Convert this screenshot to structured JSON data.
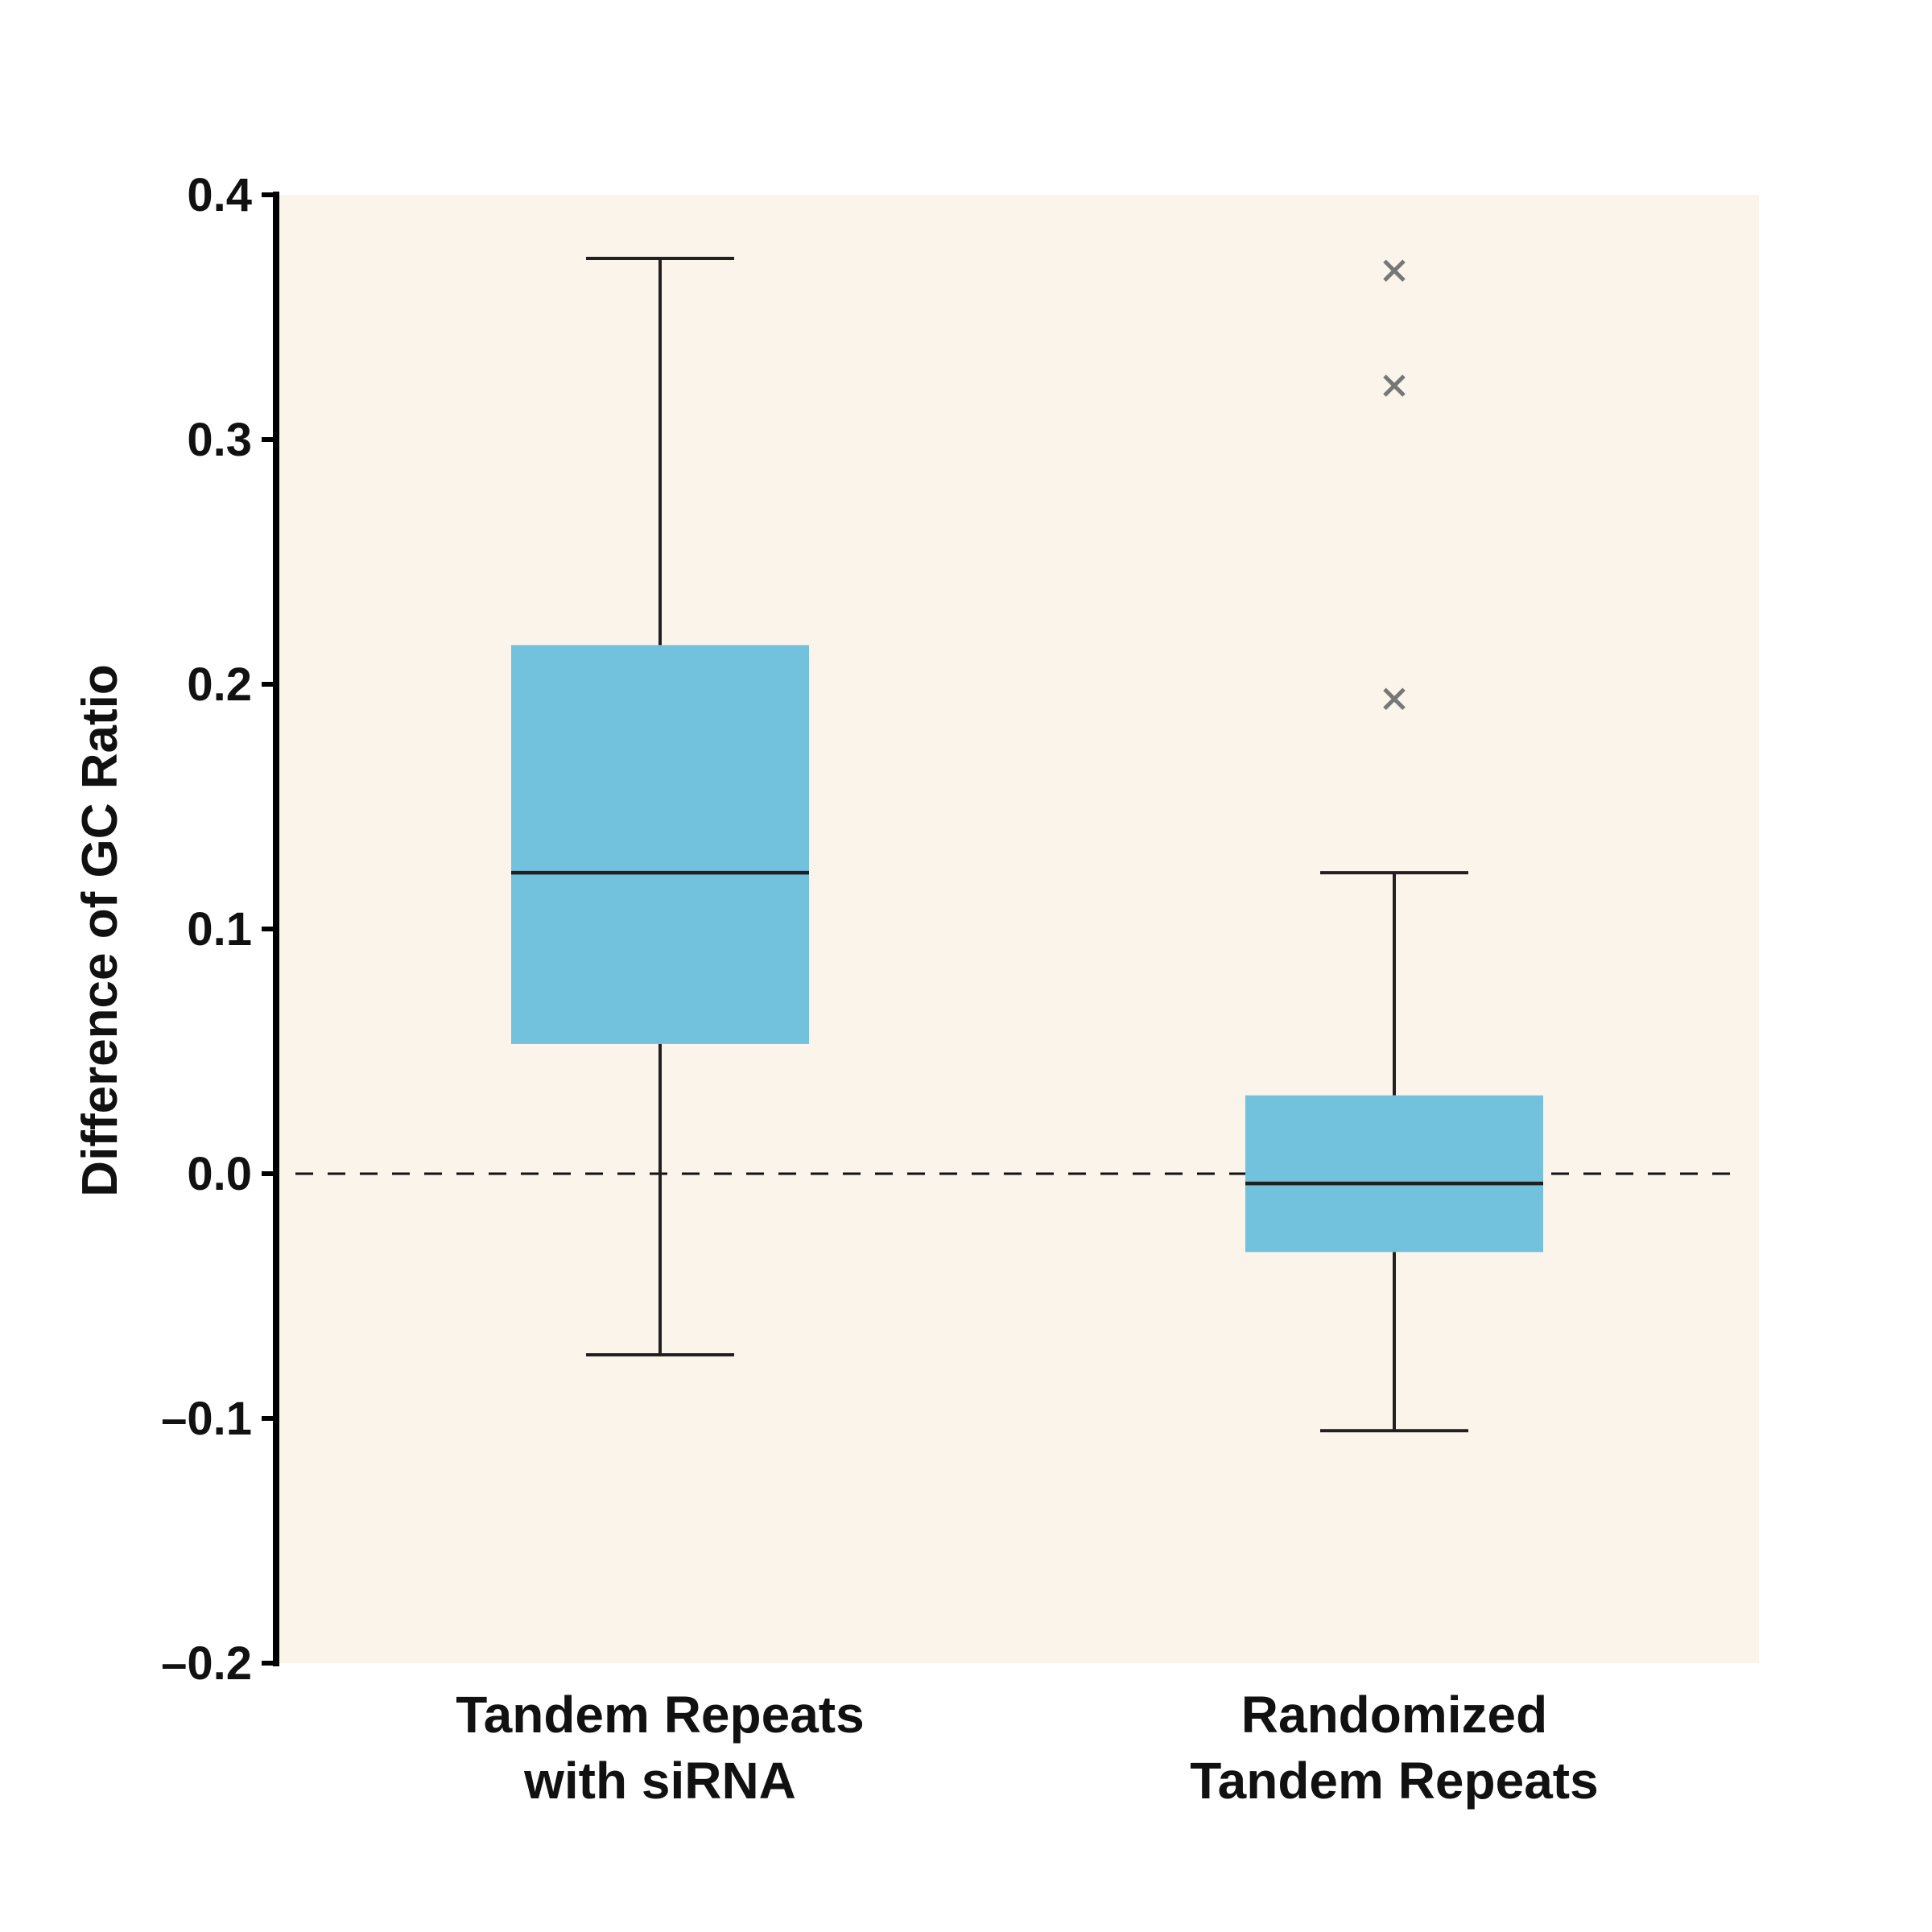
{
  "chart_data": {
    "type": "box",
    "title": "",
    "xlabel": "",
    "ylabel": "Difference of GC Ratio",
    "ylim": [
      -0.2,
      0.4
    ],
    "yticks": [
      {
        "value": 0.4,
        "label": "0.4"
      },
      {
        "value": 0.3,
        "label": "0.3"
      },
      {
        "value": 0.2,
        "label": "0.2"
      },
      {
        "value": 0.1,
        "label": "0.1"
      },
      {
        "value": 0.0,
        "label": "0.0"
      },
      {
        "value": -0.1,
        "label": "–0.1"
      },
      {
        "value": -0.2,
        "label": "–0.2"
      }
    ],
    "reference_line": {
      "y": 0.0,
      "style": "dashed"
    },
    "grid": false,
    "legend": "none",
    "categories": [
      {
        "lines": [
          "Tandem Repeats",
          "with siRNA"
        ]
      },
      {
        "lines": [
          "Randomized",
          "Tandem Repeats"
        ]
      }
    ],
    "boxes": [
      {
        "whisker_low": -0.074,
        "q1": 0.053,
        "median": 0.123,
        "q3": 0.216,
        "whisker_high": 0.374,
        "outliers": []
      },
      {
        "whisker_low": -0.105,
        "q1": -0.032,
        "median": -0.004,
        "q3": 0.032,
        "whisker_high": 0.123,
        "outliers": [
          0.369,
          0.322,
          0.194
        ]
      }
    ],
    "colors": {
      "box_fill": "#72c1dd",
      "plot_background": "#faf4ea",
      "lines": "#231f20",
      "outlier": "#777777",
      "axis": "#000000"
    }
  }
}
